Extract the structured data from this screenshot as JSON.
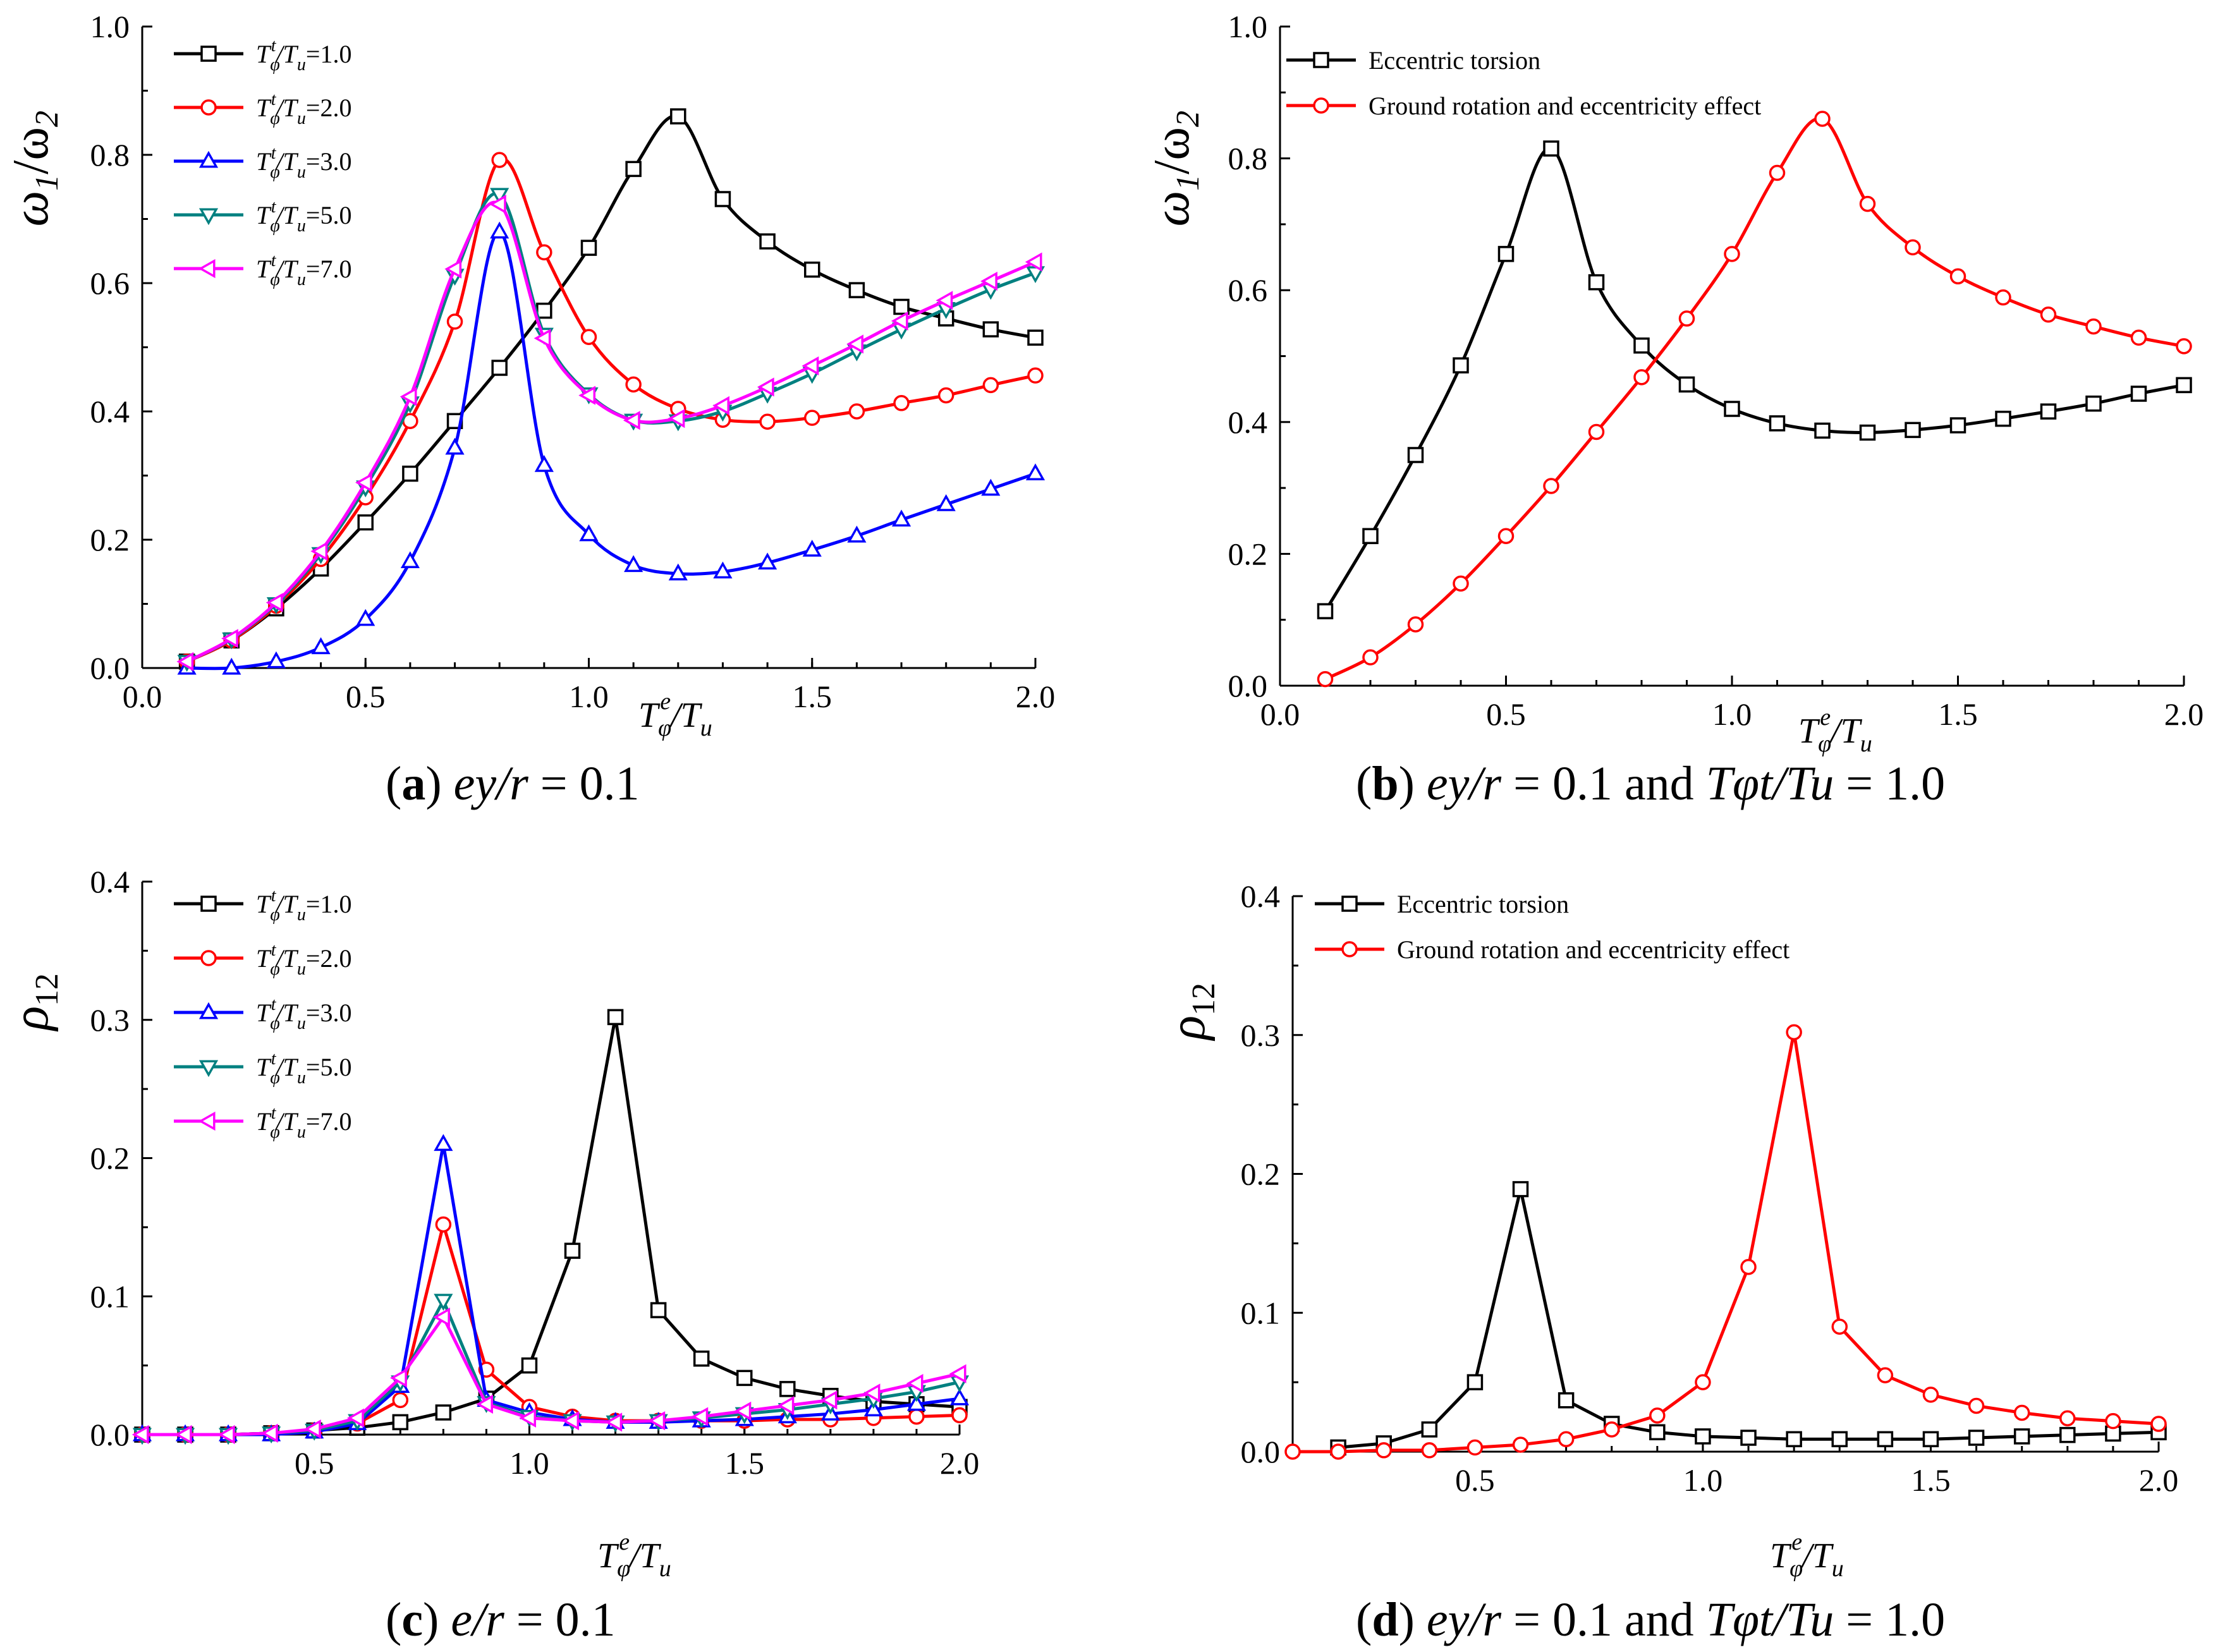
{
  "colors": {
    "series": [
      "#000000",
      "#ff0000",
      "#0000ff",
      "#008080",
      "#ff00ff"
    ],
    "two_series": [
      "#000000",
      "#ff0000"
    ]
  },
  "chart_data": [
    {
      "panel": "a",
      "type": "line",
      "caption_letter": "a",
      "caption_rest": "ey/r = 0.1",
      "ylabel": "ω1/ω2",
      "xlabel": "Tφe/Tu",
      "xlim": [
        0.0,
        2.0
      ],
      "ylim": [
        0.0,
        1.0
      ],
      "xticks": [
        "0.0",
        "0.5",
        "1.0",
        "1.5",
        "2.0"
      ],
      "yticks": [
        "0.0",
        "0.2",
        "0.4",
        "0.6",
        "0.8",
        "1.0"
      ],
      "x": [
        0.1,
        0.2,
        0.3,
        0.4,
        0.5,
        0.6,
        0.7,
        0.8,
        0.9,
        1.0,
        1.1,
        1.2,
        1.3,
        1.4,
        1.5,
        1.6,
        1.7,
        1.8,
        1.9,
        2.0
      ],
      "series": [
        {
          "name": "Tφt/Tu=1.0",
          "marker": "square",
          "values": [
            0.01,
            0.043,
            0.093,
            0.155,
            0.227,
            0.303,
            0.385,
            0.468,
            0.557,
            0.655,
            0.778,
            0.86,
            0.731,
            0.665,
            0.621,
            0.589,
            0.563,
            0.545,
            0.528,
            0.515
          ]
        },
        {
          "name": "Tφt/Tu=2.0",
          "marker": "circle",
          "values": [
            0.01,
            0.043,
            0.097,
            0.17,
            0.266,
            0.385,
            0.54,
            0.792,
            0.648,
            0.516,
            0.442,
            0.404,
            0.387,
            0.384,
            0.39,
            0.4,
            0.413,
            0.425,
            0.441,
            0.456
          ]
        },
        {
          "name": "Tφt/Tu=3.0",
          "marker": "triangle-up",
          "values": [
            0.0,
            0.0,
            0.01,
            0.032,
            0.076,
            0.166,
            0.343,
            0.68,
            0.316,
            0.208,
            0.16,
            0.147,
            0.15,
            0.164,
            0.184,
            0.206,
            0.231,
            0.255,
            0.279,
            0.303
          ]
        },
        {
          "name": "Tφt/Tu=5.0",
          "marker": "triangle-down",
          "values": [
            0.01,
            0.045,
            0.1,
            0.178,
            0.282,
            0.413,
            0.612,
            0.738,
            0.52,
            0.427,
            0.386,
            0.385,
            0.4,
            0.428,
            0.459,
            0.494,
            0.528,
            0.56,
            0.59,
            0.616
          ]
        },
        {
          "name": "Tφt/Tu=7.0",
          "marker": "triangle-left",
          "values": [
            0.01,
            0.046,
            0.102,
            0.182,
            0.289,
            0.423,
            0.622,
            0.723,
            0.514,
            0.425,
            0.386,
            0.389,
            0.409,
            0.438,
            0.471,
            0.505,
            0.541,
            0.573,
            0.603,
            0.633
          ]
        }
      ]
    },
    {
      "panel": "b",
      "type": "line",
      "caption_letter": "b",
      "caption_rest": "ey/r = 0.1 and Tφt/Tu = 1.0",
      "ylabel": "ω1/ω2",
      "xlabel": "Tφe/Tu",
      "xlim": [
        0.0,
        2.0
      ],
      "ylim": [
        0.0,
        1.0
      ],
      "xticks": [
        "0.0",
        "0.5",
        "1.0",
        "1.5",
        "2.0"
      ],
      "yticks": [
        "0.0",
        "0.2",
        "0.4",
        "0.6",
        "0.8",
        "1.0"
      ],
      "series": [
        {
          "name": "Eccentric torsion",
          "marker": "square",
          "x": [
            0.1,
            0.2,
            0.3,
            0.4,
            0.5,
            0.6,
            0.7,
            0.8,
            0.9,
            1.0,
            1.1,
            1.2,
            1.3,
            1.4,
            1.5,
            1.6,
            1.7,
            1.8,
            1.9,
            2.0
          ],
          "values": [
            0.113,
            0.227,
            0.35,
            0.486,
            0.655,
            0.815,
            0.612,
            0.516,
            0.457,
            0.42,
            0.398,
            0.387,
            0.384,
            0.388,
            0.395,
            0.405,
            0.416,
            0.428,
            0.443,
            0.456
          ]
        },
        {
          "name": "Ground rotation and eccentricity effect",
          "marker": "circle",
          "x": [
            0.1,
            0.2,
            0.3,
            0.4,
            0.5,
            0.6,
            0.7,
            0.8,
            0.9,
            1.0,
            1.1,
            1.2,
            1.3,
            1.4,
            1.5,
            1.6,
            1.7,
            1.8,
            1.9,
            2.0
          ],
          "values": [
            0.01,
            0.043,
            0.093,
            0.155,
            0.227,
            0.303,
            0.385,
            0.468,
            0.557,
            0.655,
            0.778,
            0.86,
            0.731,
            0.665,
            0.621,
            0.589,
            0.563,
            0.545,
            0.528,
            0.515
          ]
        }
      ]
    },
    {
      "panel": "c",
      "type": "line",
      "caption_letter": "c",
      "caption_rest": "e/r = 0.1",
      "ylabel": "ρ12",
      "xlabel": "Tφe/Tu",
      "xlim": [
        0.1,
        2.0
      ],
      "ylim": [
        0.0,
        0.4
      ],
      "xticks": [
        "0.5",
        "1.0",
        "1.5",
        "2.0"
      ],
      "yticks": [
        "0.0",
        "0.1",
        "0.2",
        "0.3",
        "0.4"
      ],
      "x": [
        0.1,
        0.2,
        0.3,
        0.4,
        0.5,
        0.6,
        0.7,
        0.8,
        0.9,
        1.0,
        1.1,
        1.2,
        1.3,
        1.4,
        1.5,
        1.6,
        1.7,
        1.8,
        1.9,
        2.0
      ],
      "series": [
        {
          "name": "Tφt/Tu=1.0",
          "marker": "square",
          "values": [
            0.0,
            0.0,
            0.0,
            0.001,
            0.003,
            0.005,
            0.009,
            0.016,
            0.026,
            0.05,
            0.133,
            0.302,
            0.09,
            0.055,
            0.041,
            0.033,
            0.028,
            0.024,
            0.022,
            0.02
          ]
        },
        {
          "name": "Tφt/Tu=2.0",
          "marker": "circle",
          "values": [
            0.0,
            0.0,
            0.0,
            0.001,
            0.003,
            0.008,
            0.025,
            0.152,
            0.047,
            0.02,
            0.013,
            0.01,
            0.01,
            0.01,
            0.01,
            0.011,
            0.011,
            0.012,
            0.013,
            0.014
          ]
        },
        {
          "name": "Tφt/Tu=3.0",
          "marker": "triangle-up",
          "values": [
            0.0,
            0.0,
            0.0,
            0.0,
            0.002,
            0.008,
            0.035,
            0.21,
            0.025,
            0.016,
            0.011,
            0.009,
            0.009,
            0.01,
            0.011,
            0.013,
            0.015,
            0.018,
            0.022,
            0.026
          ]
        },
        {
          "name": "Tφt/Tu=5.0",
          "marker": "triangle-down",
          "values": [
            0.0,
            0.0,
            0.0,
            0.001,
            0.003,
            0.01,
            0.038,
            0.097,
            0.023,
            0.013,
            0.01,
            0.009,
            0.01,
            0.012,
            0.015,
            0.018,
            0.022,
            0.026,
            0.031,
            0.038
          ]
        },
        {
          "name": "Tφt/Tu=7.0",
          "marker": "triangle-left",
          "values": [
            0.0,
            0.0,
            0.0,
            0.001,
            0.004,
            0.012,
            0.041,
            0.085,
            0.022,
            0.012,
            0.01,
            0.009,
            0.01,
            0.013,
            0.017,
            0.021,
            0.025,
            0.03,
            0.037,
            0.044
          ]
        }
      ]
    },
    {
      "panel": "d",
      "type": "line",
      "caption_letter": "d",
      "caption_rest": "ey/r = 0.1 and Tφt/Tu = 1.0",
      "ylabel": "ρ12",
      "xlabel": "Tφe/Tu",
      "xlim": [
        0.1,
        2.0
      ],
      "ylim": [
        0.0,
        0.4
      ],
      "xticks": [
        "0.5",
        "1.0",
        "1.5",
        "2.0"
      ],
      "yticks": [
        "0.0",
        "0.1",
        "0.2",
        "0.3",
        "0.4"
      ],
      "series": [
        {
          "name": "Eccentric torsion",
          "marker": "square",
          "x": [
            0.2,
            0.3,
            0.4,
            0.5,
            0.6,
            0.7,
            0.8,
            0.9,
            1.0,
            1.1,
            1.2,
            1.3,
            1.4,
            1.5,
            1.6,
            1.7,
            1.8,
            1.9,
            2.0
          ],
          "values": [
            0.003,
            0.006,
            0.016,
            0.05,
            0.189,
            0.037,
            0.02,
            0.014,
            0.011,
            0.01,
            0.009,
            0.009,
            0.009,
            0.009,
            0.01,
            0.011,
            0.012,
            0.013,
            0.014
          ]
        },
        {
          "name": "Ground rotation and eccentricity effect",
          "marker": "circle",
          "x": [
            0.1,
            0.2,
            0.3,
            0.4,
            0.5,
            0.6,
            0.7,
            0.8,
            0.9,
            1.0,
            1.1,
            1.2,
            1.3,
            1.4,
            1.5,
            1.6,
            1.7,
            1.8,
            1.9,
            2.0
          ],
          "values": [
            0.0,
            0.0,
            0.001,
            0.001,
            0.003,
            0.005,
            0.009,
            0.016,
            0.026,
            0.05,
            0.133,
            0.302,
            0.09,
            0.055,
            0.041,
            0.033,
            0.028,
            0.024,
            0.022,
            0.02
          ]
        }
      ]
    }
  ]
}
